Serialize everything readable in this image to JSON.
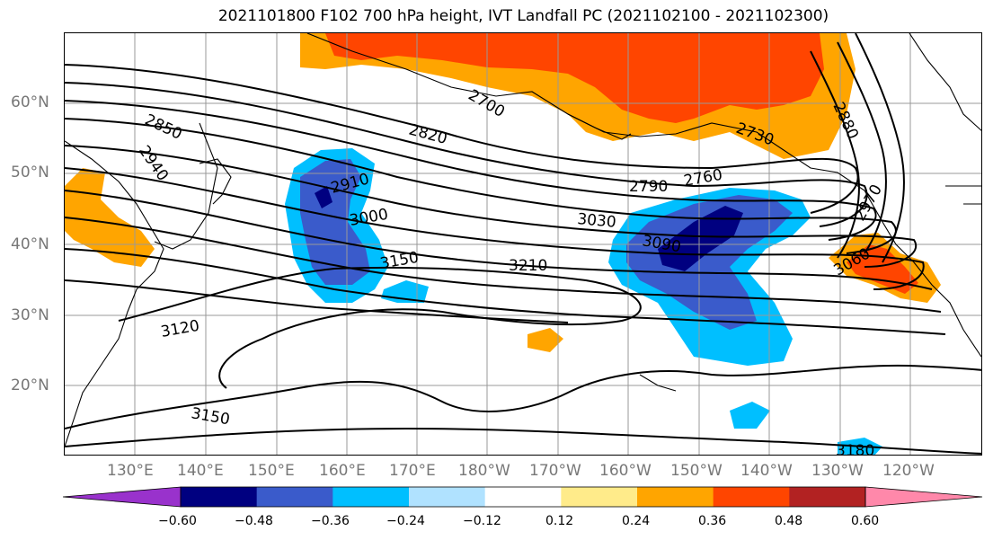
{
  "title": "2021101800 F102 700 hPa height, IVT Landfall PC (2021102100 - 2021102300)",
  "map": {
    "lat_labels": [
      "60°N",
      "50°N",
      "40°N",
      "30°N",
      "20°N"
    ],
    "lon_labels": [
      "130°E",
      "140°E",
      "150°E",
      "160°E",
      "170°E",
      "180°W",
      "170°W",
      "160°W",
      "150°W",
      "140°W",
      "130°W",
      "120°W"
    ],
    "contour_labels": [
      "2850",
      "2940",
      "2820",
      "2700",
      "2910",
      "3000",
      "3150",
      "3210",
      "3030",
      "2790",
      "2760",
      "2730",
      "2880",
      "2970",
      "3090",
      "3060",
      "3120",
      "3150",
      "3180"
    ]
  },
  "colorbar": {
    "tick_labels": [
      "−0.60",
      "−0.48",
      "−0.36",
      "−0.24",
      "−0.12",
      "0.12",
      "0.24",
      "0.36",
      "0.48",
      "0.60"
    ],
    "colors": [
      "#9932CC",
      "#000080",
      "#3A5BCB",
      "#00BFFF",
      "#B0E2FF",
      "#FFFFFF",
      "#FFEB8A",
      "#FFA500",
      "#FF4500",
      "#B22222",
      "#FF88AA"
    ]
  }
}
